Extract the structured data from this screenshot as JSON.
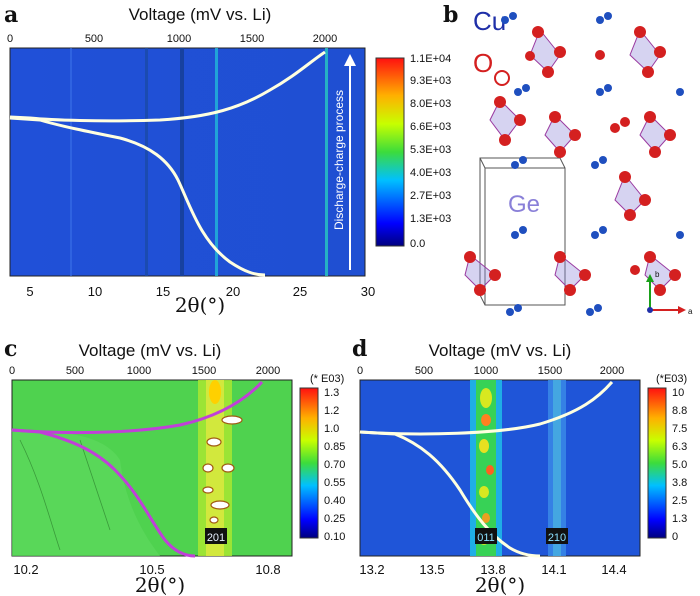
{
  "panel_a": {
    "label": "a",
    "top_axis_title": "Voltage (mV vs. Li)",
    "top_ticks": [
      "0",
      "500",
      "1000",
      "1500",
      "2000"
    ],
    "bottom_ticks": [
      "5",
      "10",
      "15",
      "20",
      "25",
      "30"
    ],
    "bottom_axis_title": "2θ(°)",
    "arrow_label": "Discharge-charge process",
    "colorbar": [
      "1.1E+04",
      "9.3E+03",
      "8.0E+03",
      "6.6E+03",
      "5.3E+03",
      "4.0E+03",
      "2.7E+03",
      "1.3E+03",
      "0.0"
    ]
  },
  "panel_b": {
    "label": "b",
    "atom_labels": [
      "Cu",
      "O",
      "Ge"
    ],
    "axes": [
      "b",
      "a"
    ],
    "colors": {
      "cu": "#1f4fbf",
      "o": "#d42020",
      "ge": "#8a80d8"
    }
  },
  "panel_c": {
    "label": "c",
    "top_axis_title": "Voltage (mV vs. Li)",
    "top_ticks": [
      "0",
      "500",
      "1000",
      "1500",
      "2000"
    ],
    "bottom_ticks": [
      "10.2",
      "10.5",
      "10.8"
    ],
    "bottom_axis_title": "2θ(°)",
    "peak_label": "201",
    "colorbar_unit": "(* E03)",
    "colorbar": [
      "1.3",
      "1.2",
      "1.0",
      "0.85",
      "0.70",
      "0.55",
      "0.40",
      "0.25",
      "0.10"
    ]
  },
  "panel_d": {
    "label": "d",
    "top_axis_title": "Voltage (mV vs. Li)",
    "top_ticks": [
      "0",
      "500",
      "1000",
      "1500",
      "2000"
    ],
    "bottom_ticks": [
      "13.2",
      "13.5",
      "13.8",
      "14.1",
      "14.4"
    ],
    "bottom_axis_title": "2θ(°)",
    "peak_labels": [
      "011",
      "210"
    ],
    "colorbar_unit": "(*E03)",
    "colorbar": [
      "10",
      "8.8",
      "7.5",
      "6.3",
      "5.0",
      "3.8",
      "2.5",
      "1.3",
      "0"
    ]
  }
}
